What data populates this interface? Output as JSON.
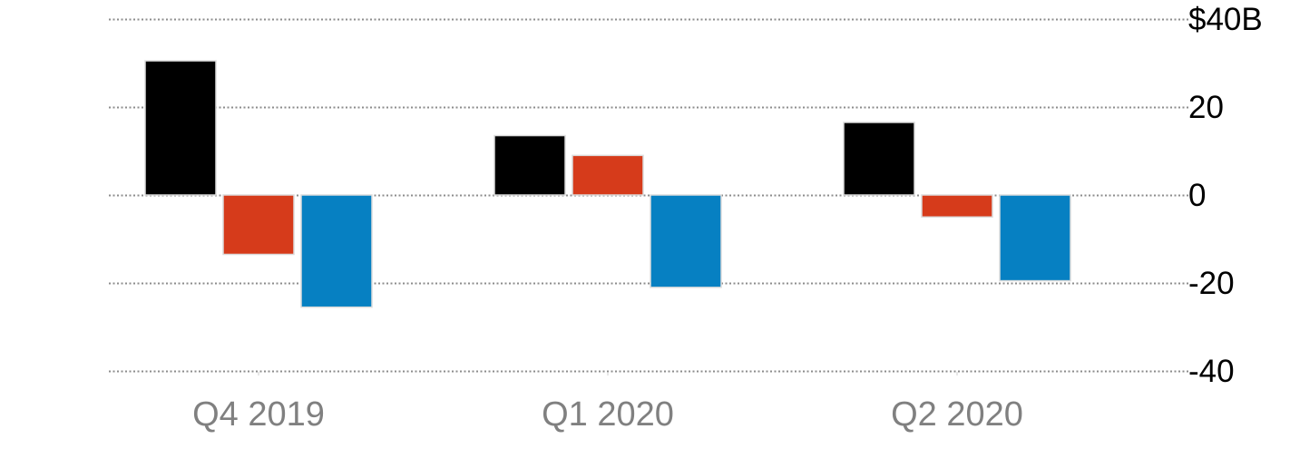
{
  "chart_data": {
    "type": "bar",
    "categories": [
      "Q4 2019",
      "Q1 2020",
      "Q2 2020"
    ],
    "series": [
      {
        "color": "#000000",
        "values": [
          30.5,
          13.5,
          16.5
        ]
      },
      {
        "color": "#d63b1b",
        "values": [
          -13.5,
          9,
          -5
        ]
      },
      {
        "color": "#0680c2",
        "values": [
          -25.5,
          -21,
          -19.5
        ]
      }
    ],
    "ylim": [
      -40,
      40
    ],
    "yticks": [
      {
        "value": 40,
        "label": "$40B"
      },
      {
        "value": 20,
        "label": "20"
      },
      {
        "value": 0,
        "label": "0"
      },
      {
        "value": -20,
        "label": "-20"
      },
      {
        "value": -40,
        "label": "-40"
      }
    ],
    "title": "",
    "xlabel": "",
    "ylabel": "",
    "grid": true,
    "y_axis_side": "right"
  }
}
